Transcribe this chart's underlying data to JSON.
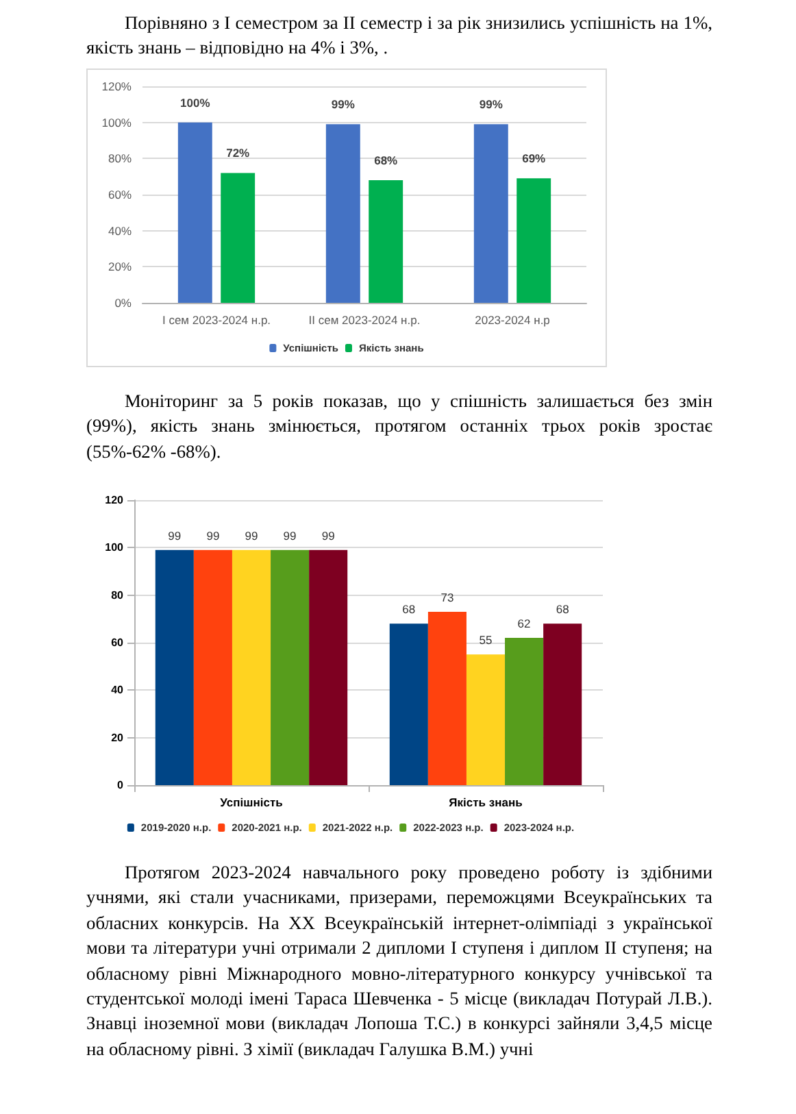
{
  "chart_data": [
    {
      "type": "bar",
      "categories": [
        "I сем 2023-2024 н.р.",
        "II сем 2023-2024 н.р.",
        "2023-2024 н.р"
      ],
      "series": [
        {
          "name": "Успішність",
          "color": "#4472c4",
          "values": [
            100,
            99,
            99
          ],
          "value_labels": [
            "100%",
            "99%",
            "99%"
          ]
        },
        {
          "name": "Якість знань",
          "color": "#00b050",
          "values": [
            72,
            68,
            69
          ],
          "value_labels": [
            "72%",
            "68%",
            "69%"
          ]
        }
      ],
      "ylim": [
        0,
        120
      ],
      "yticks": [
        {
          "value": 0,
          "label": "0%"
        },
        {
          "value": 20,
          "label": "20%"
        },
        {
          "value": 40,
          "label": "40%"
        },
        {
          "value": 60,
          "label": "60%"
        },
        {
          "value": 80,
          "label": "80%"
        },
        {
          "value": 100,
          "label": "100%"
        },
        {
          "value": 120,
          "label": "120%"
        }
      ],
      "grid": "y",
      "legend": "bottom",
      "annotations": [
        "Порівняно з I семестром за II семестр і за рік знизились успішність на 1%, якість знань – відповідно на 4% і 3%, ."
      ]
    },
    {
      "type": "bar",
      "categories": [
        "Успішність",
        "Якість знань"
      ],
      "series": [
        {
          "name": "2019-2020 н.р.",
          "color": "#004586",
          "values": [
            99,
            68
          ]
        },
        {
          "name": "2020-2021 н.р.",
          "color": "#ff420e",
          "values": [
            99,
            73
          ]
        },
        {
          "name": "2021-2022 н.р.",
          "color": "#ffd320",
          "values": [
            99,
            55
          ]
        },
        {
          "name": "2022-2023 н.р.",
          "color": "#579d1c",
          "values": [
            99,
            62
          ]
        },
        {
          "name": "2023-2024 н.р.",
          "color": "#7e0021",
          "values": [
            99,
            68
          ]
        }
      ],
      "ylim": [
        0,
        120
      ],
      "yticks": [
        0,
        20,
        40,
        60,
        80,
        100,
        120
      ],
      "grid": "y",
      "legend": "bottom",
      "data_labels": true,
      "annotations": [
        "Моніторинг за 5 років показав, що у спішність залишається без змін (99%), якість знань змінюється, протягом останніх трьох років зростає (55%-62% -68%).",
        "Протягом 2023-2024 навчального року проведено роботу із здібними учнями, які стали учасниками, призерами, переможцями Всеукраїнських та обласних конкурсів. На ХХ Всеукраїнській інтернет-олімпіаді з української мови та літератури учні отримали 2 дипломи I ступеня і диплом II ступеня; на обласному рівні Міжнародного мовно-літературного конкурсу учнівської та студентської молоді імені Тараса Шевченка - 5 місце (викладач Потурай Л.В.). Знавці іноземної мови (викладач Лопоша Т.С.) в конкурсі зайняли 3,4,5 місце на обласному рівні. З хімії (викладач Галушка В.М.) учні"
      ]
    }
  ]
}
